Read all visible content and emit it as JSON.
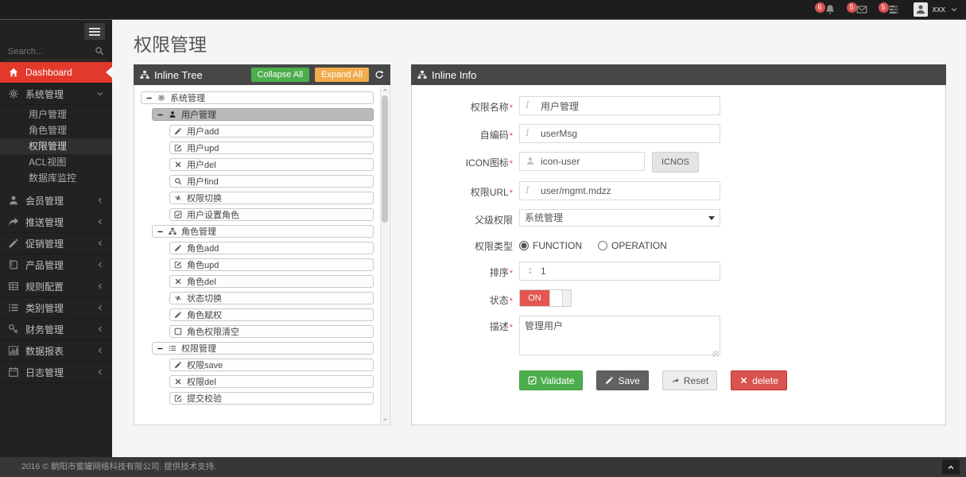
{
  "colors": {
    "accent_red": "#e2392c",
    "topbar_dark": "#1d1d1d",
    "sidebar_dark": "#222222",
    "panel_header": "#474747",
    "green": "#4cae4c",
    "orange": "#f0ad4e",
    "save_gray": "#616161",
    "delete_red": "#d9534f",
    "toggle_on_red": "#e4564f"
  },
  "topbar": {
    "notifications": [
      {
        "icon": "bell-icon",
        "count": "6"
      },
      {
        "icon": "envelope-icon",
        "count": "5"
      },
      {
        "icon": "tasks-icon",
        "count": "5"
      }
    ],
    "user": {
      "name": "xxx",
      "avatar_icon": "user-icon",
      "caret_icon": "chevron-down-icon"
    }
  },
  "sidebar": {
    "search_placeholder": "Search...",
    "items": [
      {
        "label": "Dashboard",
        "icon": "home-icon",
        "active": true
      },
      {
        "label": "系统管理",
        "icon": "gears-icon",
        "expanded": true,
        "children": [
          "用户管理",
          "角色管理",
          "权限管理",
          "ACL视图",
          "数据库监控"
        ],
        "active_child": "权限管理"
      },
      {
        "label": "会员管理",
        "icon": "user-icon"
      },
      {
        "label": "推送管理",
        "icon": "share-icon"
      },
      {
        "label": "促销管理",
        "icon": "pencil-icon"
      },
      {
        "label": "产品管理",
        "icon": "book-icon"
      },
      {
        "label": "规则配置",
        "icon": "table-icon"
      },
      {
        "label": "类别管理",
        "icon": "list-icon"
      },
      {
        "label": "财务管理",
        "icon": "key-icon"
      },
      {
        "label": "数据报表",
        "icon": "chart-icon"
      },
      {
        "label": "日志管理",
        "icon": "calendar-icon"
      }
    ]
  },
  "page": {
    "title": "权限管理"
  },
  "tree_panel": {
    "title": "Inline Tree",
    "collapse_all": "Collapse All",
    "expand_all": "Expand All",
    "rows": [
      {
        "level": 0,
        "toggle": true,
        "icon": "gears-icon",
        "label": "系统管理"
      },
      {
        "level": 1,
        "toggle": true,
        "icon": "user-icon",
        "label": "用户管理",
        "selected": true
      },
      {
        "level": 2,
        "icon": "pencil-icon",
        "label": "用户add"
      },
      {
        "level": 2,
        "icon": "edit-icon",
        "label": "用户upd"
      },
      {
        "level": 2,
        "icon": "close-icon",
        "label": "用户del"
      },
      {
        "level": 2,
        "icon": "search-icon",
        "label": "用户find"
      },
      {
        "level": 2,
        "icon": "retweet-icon",
        "label": "权限切换"
      },
      {
        "level": 2,
        "icon": "check-square-icon",
        "label": "用户设置角色"
      },
      {
        "level": 1,
        "toggle": true,
        "icon": "sitemap-icon",
        "label": "角色管理"
      },
      {
        "level": 2,
        "icon": "pencil-icon",
        "label": "角色add"
      },
      {
        "level": 2,
        "icon": "edit-icon",
        "label": "角色upd"
      },
      {
        "level": 2,
        "icon": "close-icon",
        "label": "角色del"
      },
      {
        "level": 2,
        "icon": "retweet-icon",
        "label": "状态切换"
      },
      {
        "level": 2,
        "icon": "pencil-icon",
        "label": "角色赋权"
      },
      {
        "level": 2,
        "icon": "square-icon",
        "label": "角色权限清空"
      },
      {
        "level": 1,
        "toggle": true,
        "icon": "list-icon",
        "label": "权限管理"
      },
      {
        "level": 2,
        "icon": "pencil-icon",
        "label": "权限save"
      },
      {
        "level": 2,
        "icon": "close-icon",
        "label": "权限del"
      },
      {
        "level": 2,
        "icon": "edit-icon",
        "label": "提交校验"
      }
    ]
  },
  "info_panel": {
    "title": "Inline Info",
    "fields": {
      "name": {
        "label": "权限名称",
        "required": true,
        "value": "用户管理"
      },
      "code": {
        "label": "自编码",
        "required": true,
        "value": "userMsg"
      },
      "icon": {
        "label": "ICON图标",
        "required": true,
        "value": "icon-user",
        "button": "ICNOS"
      },
      "url": {
        "label": "权限URL",
        "required": true,
        "value": "user/mgmt.mdzz"
      },
      "parent": {
        "label": "父级权限",
        "required": false,
        "value": "系统管理"
      },
      "type": {
        "label": "权限类型",
        "required": false,
        "options": [
          "FUNCTION",
          "OPERATION"
        ],
        "selected": "FUNCTION"
      },
      "order": {
        "label": "排序",
        "required": true,
        "value": "1"
      },
      "status": {
        "label": "状态",
        "required": true,
        "value": "ON"
      },
      "desc": {
        "label": "描述",
        "required": true,
        "value": "管理用户"
      }
    },
    "buttons": {
      "validate": "Validate",
      "save": "Save",
      "reset": "Reset",
      "delete": "delete"
    }
  },
  "footer": {
    "copyright": "2016 © 朝阳市蜜罐网络科技有限公司. 提供技术支持."
  }
}
